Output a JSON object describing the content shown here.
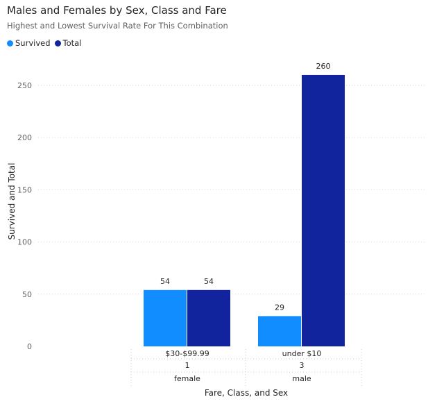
{
  "header": {
    "title": "Males and Females by Sex, Class and Fare",
    "subtitle": "Highest and Lowest Survival Rate For This Combination"
  },
  "legend": [
    {
      "label": "Survived",
      "color": "#118DFF"
    },
    {
      "label": "Total",
      "color": "#12239E"
    }
  ],
  "chart_data": {
    "type": "bar",
    "title": "Males and Females by Sex, Class and Fare",
    "subtitle": "Highest and Lowest Survival Rate For This Combination",
    "xlabel": "Fare, Class, and Sex",
    "ylabel": "Survived and Total",
    "ylim": [
      0,
      275
    ],
    "yticks": [
      0,
      50,
      100,
      150,
      200,
      250
    ],
    "grid": true,
    "legend_position": "top-left",
    "categories": [
      {
        "fare": "$30-$99.99",
        "class": "1",
        "sex": "female"
      },
      {
        "fare": "under $10",
        "class": "3",
        "sex": "male"
      }
    ],
    "series": [
      {
        "name": "Survived",
        "color": "#118DFF",
        "values": [
          54,
          29
        ]
      },
      {
        "name": "Total",
        "color": "#12239E",
        "values": [
          54,
          260
        ]
      }
    ]
  }
}
